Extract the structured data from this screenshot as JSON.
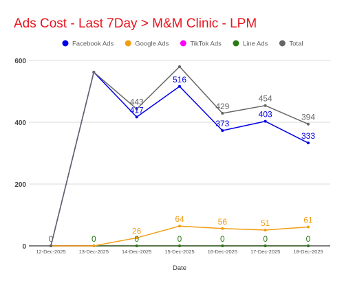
{
  "chart_data": {
    "type": "line",
    "title": "Ads Cost - Last 7Day > M&M Clinic - LPM",
    "xlabel": "Date",
    "ylabel": "",
    "ylim": [
      0,
      600
    ],
    "y_ticks": [
      0,
      200,
      400,
      600
    ],
    "grid": true,
    "legend_position": "top-center",
    "categories": [
      "12-Dec-2025",
      "13-Dec-2025",
      "14-Dec-2025",
      "15-Dec-2025",
      "16-Dec-2025",
      "17-Dec-2025",
      "18-Dec-2025"
    ],
    "series": [
      {
        "name": "Facebook Ads",
        "color": "#0000e6",
        "values": [
          0,
          562,
          417,
          516,
          373,
          403,
          333
        ],
        "data_labels": [
          "",
          "",
          "417",
          "516",
          "373",
          "403",
          "333"
        ]
      },
      {
        "name": "Google Ads",
        "color": "#f29d12",
        "values": [
          0,
          0,
          26,
          64,
          56,
          51,
          61
        ],
        "data_labels": [
          "",
          "",
          "26",
          "64",
          "56",
          "51",
          "61"
        ]
      },
      {
        "name": "TikTok Ads",
        "color": "#ff00ff",
        "values": [
          0,
          0,
          0,
          0,
          0,
          0,
          0
        ],
        "data_labels": [
          "",
          "",
          "",
          "",
          "",
          "",
          ""
        ]
      },
      {
        "name": "Line Ads",
        "color": "#287a13",
        "values": [
          0,
          0,
          0,
          0,
          0,
          0,
          0
        ],
        "data_labels": [
          "",
          "0",
          "0",
          "0",
          "0",
          "0",
          "0"
        ]
      },
      {
        "name": "Total",
        "color": "#666666",
        "values": [
          0,
          562,
          443,
          580,
          429,
          454,
          394
        ],
        "data_labels": [
          "0",
          "",
          "443",
          "",
          "429",
          "454",
          "394"
        ]
      }
    ]
  }
}
